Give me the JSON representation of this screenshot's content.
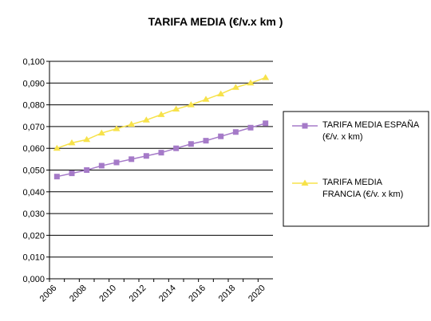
{
  "chart_data": {
    "type": "line",
    "title": "TARIFA MEDIA (€/v.x km )",
    "categories": [
      "2006",
      null,
      "2008",
      null,
      "2010",
      null,
      "2012",
      null,
      "2014",
      null,
      "2016",
      null,
      "2018",
      null,
      "2020"
    ],
    "series": [
      {
        "name": "TARIFA MEDIA ESPAÑA (€/v. x km)",
        "color": "#a57ac8",
        "values": [
          0.047,
          0.0485,
          0.05,
          0.052,
          0.0535,
          0.055,
          0.0565,
          0.058,
          0.06,
          0.062,
          0.0635,
          0.0655,
          0.0675,
          0.0695,
          0.0715
        ]
      },
      {
        "name": "TARIFA MEDIA FRANCIA (€/v. x km)",
        "color": "#f7e24a",
        "values": [
          0.06,
          0.0625,
          0.064,
          0.067,
          0.069,
          0.071,
          0.073,
          0.0755,
          0.078,
          0.08,
          0.0825,
          0.085,
          0.088,
          0.09,
          0.0925
        ]
      }
    ],
    "ylim": [
      0,
      0.1
    ],
    "yticks": [
      {
        "value": 0,
        "label": "0,000"
      },
      {
        "value": 0.01,
        "label": "0,010"
      },
      {
        "value": 0.02,
        "label": "0,020"
      },
      {
        "value": 0.03,
        "label": "0,030"
      },
      {
        "value": 0.04,
        "label": "0,040"
      },
      {
        "value": 0.05,
        "label": "0,050"
      },
      {
        "value": 0.06,
        "label": "0,060"
      },
      {
        "value": 0.07,
        "label": "0,070"
      },
      {
        "value": 0.08,
        "label": "0,080"
      },
      {
        "value": 0.09,
        "label": "0,090"
      },
      {
        "value": 0.1,
        "label": "0,100"
      }
    ],
    "grid": true
  }
}
